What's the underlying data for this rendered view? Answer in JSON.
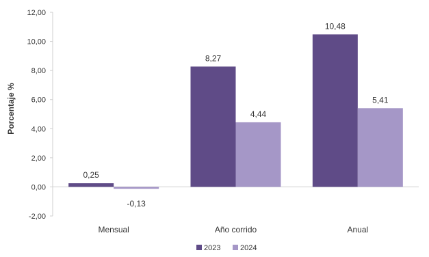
{
  "chart_data": {
    "type": "bar",
    "categories": [
      "Mensual",
      "Año corrido",
      "Anual"
    ],
    "series": [
      {
        "name": "2023",
        "values": [
          0.25,
          8.27,
          10.48
        ],
        "labels": [
          "0,25",
          "8,27",
          "10,48"
        ],
        "color": "#5f4b87"
      },
      {
        "name": "2024",
        "values": [
          -0.13,
          4.44,
          5.41
        ],
        "labels": [
          "-0,13",
          "4,44",
          "5,41"
        ],
        "color": "#a597c7"
      }
    ],
    "title": "",
    "xlabel": "",
    "ylabel": "Porcentaje %",
    "ylim": [
      -2,
      12
    ],
    "yticks": [
      -2,
      0,
      2,
      4,
      6,
      8,
      10,
      12
    ],
    "ytick_labels": [
      "-2,00",
      "0,00",
      "2,00",
      "4,00",
      "6,00",
      "8,00",
      "10,00",
      "12,00"
    ],
    "grid": false,
    "legend_position": "bottom"
  }
}
